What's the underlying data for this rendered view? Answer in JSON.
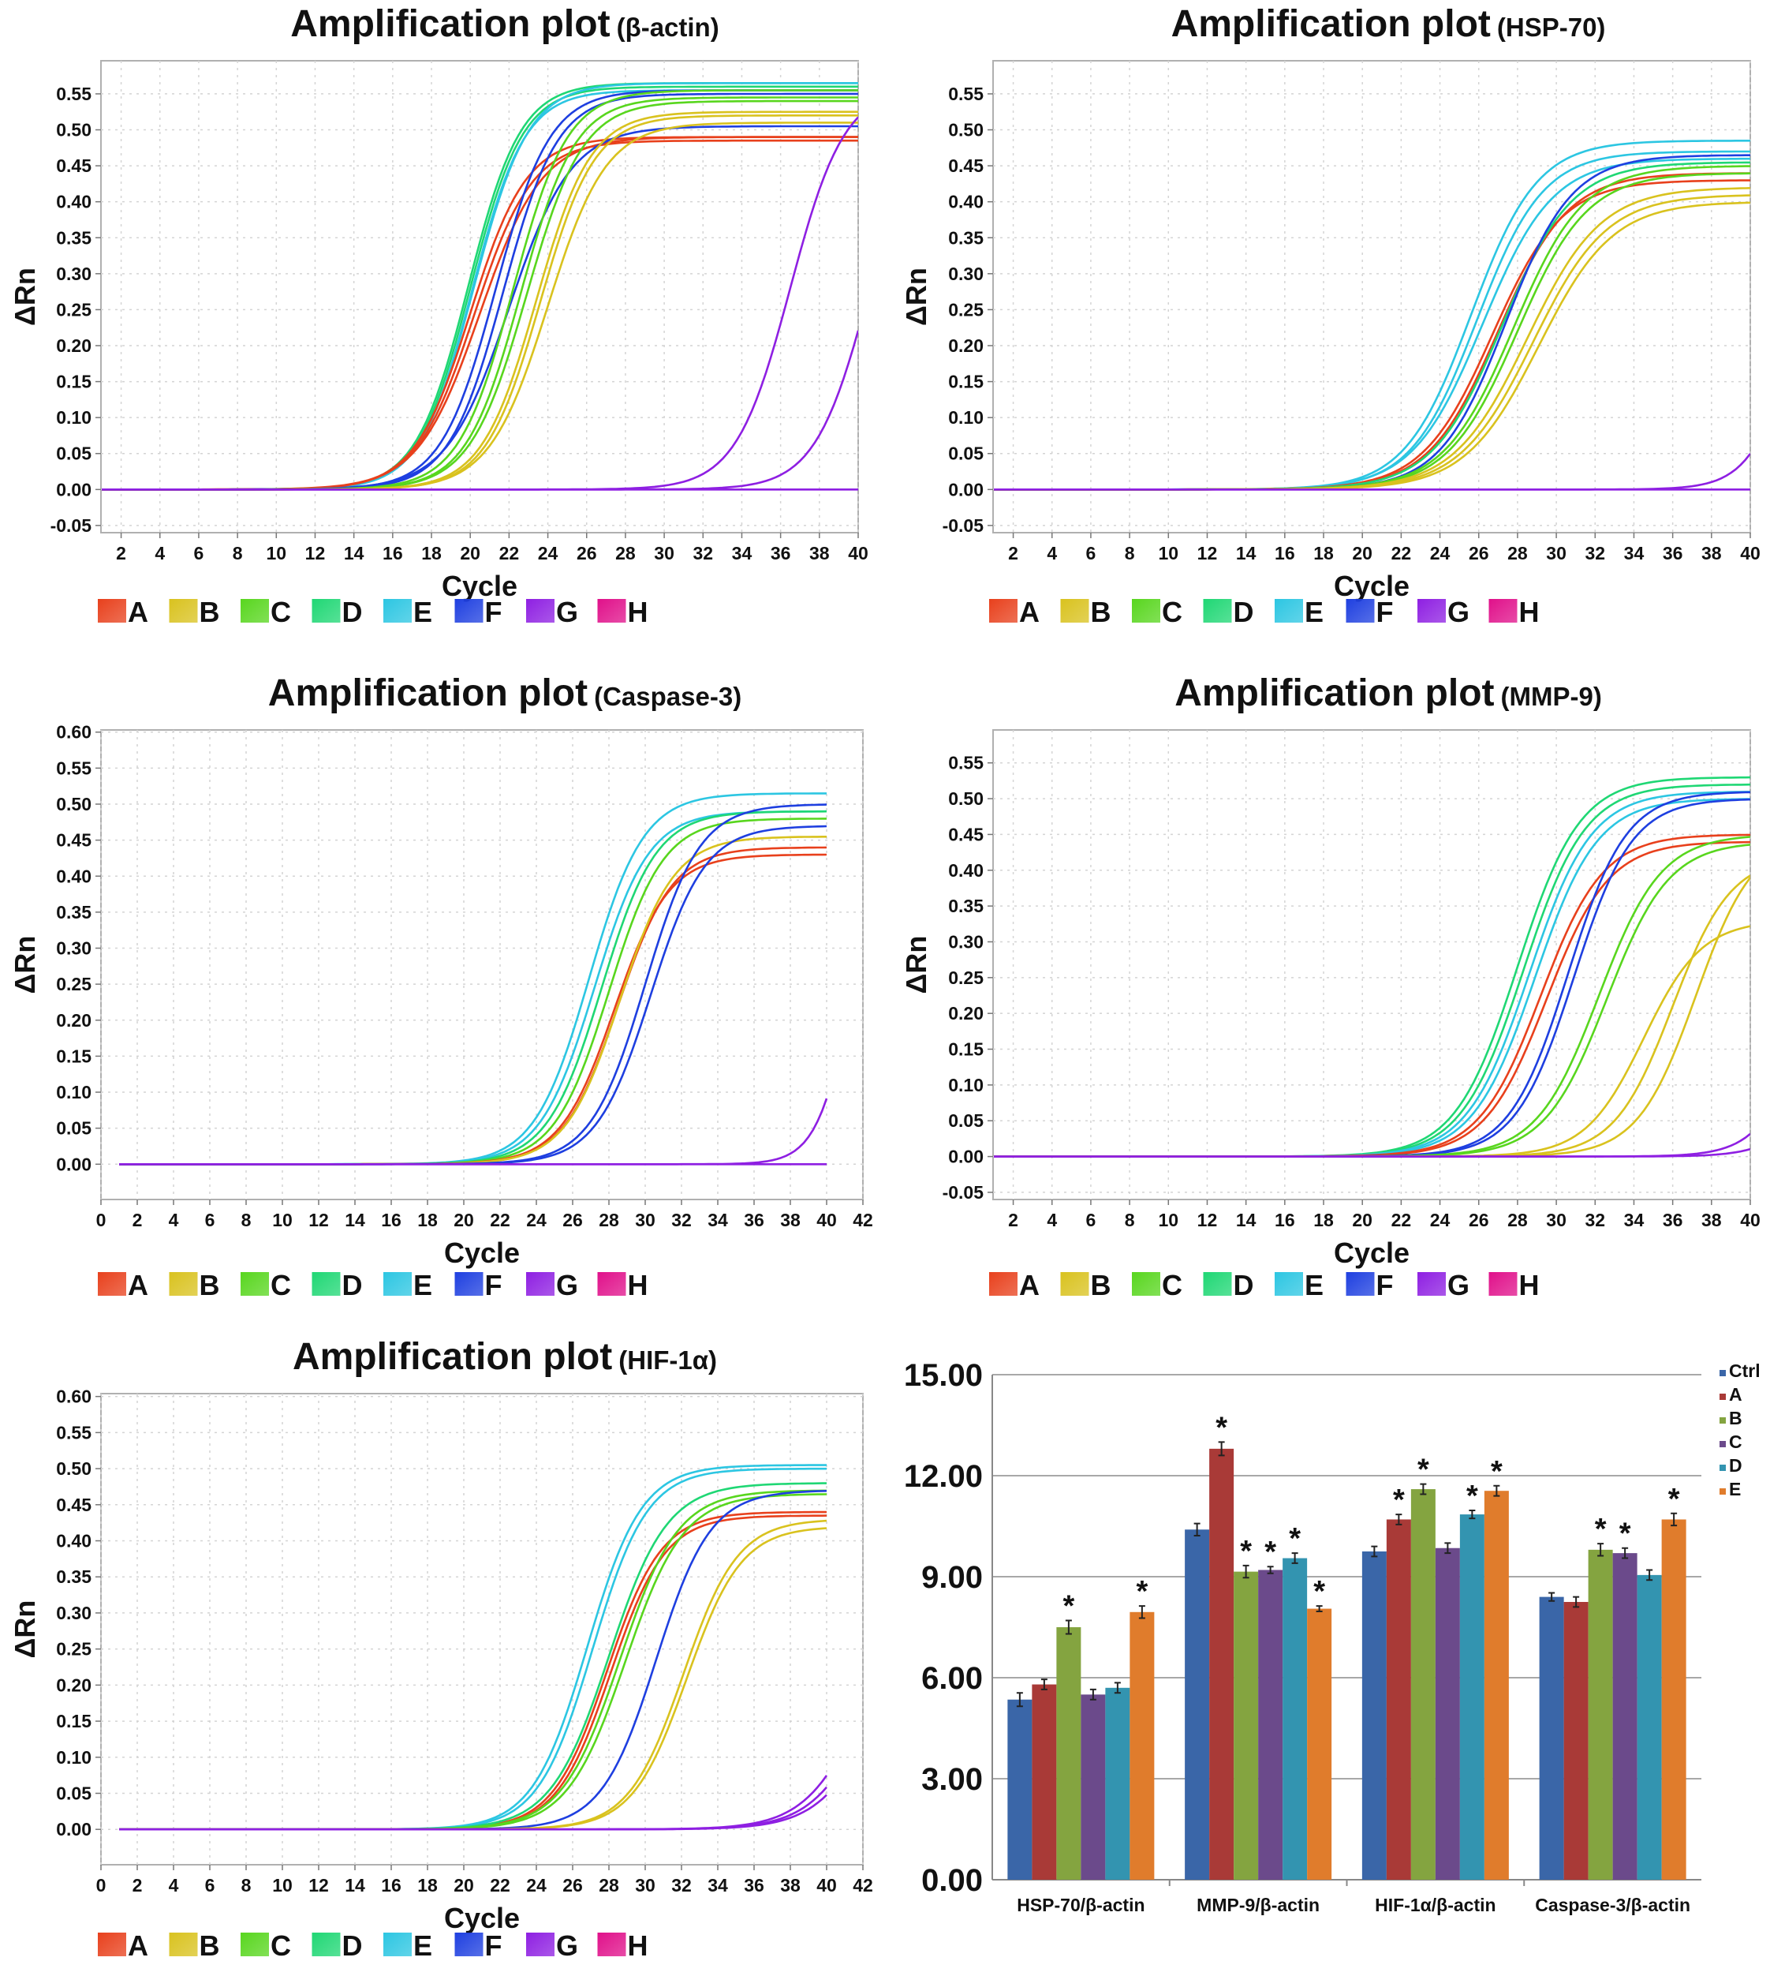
{
  "colors": {
    "A": "#e8401c",
    "B": "#d9c21e",
    "C": "#58d61e",
    "D": "#1fd774",
    "E": "#2cc6e2",
    "F": "#1e3fe0",
    "G": "#8e1fe2",
    "H": "#e0108a"
  },
  "legend_groups": [
    "A",
    "B",
    "C",
    "D",
    "E",
    "F",
    "G",
    "H"
  ],
  "chart_data": [
    {
      "type": "line",
      "title": "Amplification plot",
      "subtitle": "(β-actin)",
      "xlabel": "Cycle",
      "ylabel": "ΔRn",
      "xlim": [
        0.96,
        40
      ],
      "ylim": [
        -0.06,
        0.596
      ],
      "xticks": [
        2,
        4,
        6,
        8,
        10,
        12,
        14,
        16,
        18,
        20,
        22,
        24,
        26,
        28,
        30,
        32,
        34,
        36,
        38,
        40
      ],
      "yticks": [
        -0.05,
        0,
        0.05,
        0.1,
        0.15,
        0.2,
        0.25,
        0.3,
        0.35,
        0.4,
        0.45,
        0.5,
        0.55
      ],
      "grid": true,
      "legend_position": "bottom",
      "curves": [
        {
          "group": "D",
          "midpoint": 19.9,
          "plateau": 0.565,
          "slope": 1.35
        },
        {
          "group": "D",
          "midpoint": 20.0,
          "plateau": 0.56,
          "slope": 1.35
        },
        {
          "group": "E",
          "midpoint": 20.1,
          "plateau": 0.555,
          "slope": 1.35
        },
        {
          "group": "E",
          "midpoint": 20.2,
          "plateau": 0.565,
          "slope": 1.4
        },
        {
          "group": "A",
          "midpoint": 20.0,
          "plateau": 0.49,
          "slope": 1.45
        },
        {
          "group": "A",
          "midpoint": 20.2,
          "plateau": 0.485,
          "slope": 1.5
        },
        {
          "group": "A",
          "midpoint": 20.5,
          "plateau": 0.49,
          "slope": 1.6
        },
        {
          "group": "F",
          "midpoint": 21.3,
          "plateau": 0.555,
          "slope": 1.4
        },
        {
          "group": "F",
          "midpoint": 21.7,
          "plateau": 0.55,
          "slope": 1.4
        },
        {
          "group": "F",
          "midpoint": 22.0,
          "plateau": 0.505,
          "slope": 1.6
        },
        {
          "group": "C",
          "midpoint": 22.2,
          "plateau": 0.555,
          "slope": 1.4
        },
        {
          "group": "C",
          "midpoint": 22.6,
          "plateau": 0.545,
          "slope": 1.4
        },
        {
          "group": "C",
          "midpoint": 22.9,
          "plateau": 0.54,
          "slope": 1.45
        },
        {
          "group": "B",
          "midpoint": 23.4,
          "plateau": 0.525,
          "slope": 1.4
        },
        {
          "group": "B",
          "midpoint": 23.6,
          "plateau": 0.52,
          "slope": 1.4
        },
        {
          "group": "B",
          "midpoint": 24.0,
          "plateau": 0.51,
          "slope": 1.5
        },
        {
          "group": "G",
          "midpoint": 36.5,
          "plateau": 0.56,
          "slope": 1.4
        },
        {
          "group": "G",
          "midpoint": 40.6,
          "plateau": 0.56,
          "slope": 1.4
        },
        {
          "group": "G",
          "midpoint": 60,
          "plateau": 0.0,
          "slope": 1.4
        }
      ]
    },
    {
      "type": "line",
      "title": "Amplification plot",
      "subtitle": "(HSP-70)",
      "xlabel": "Cycle",
      "ylabel": "ΔRn",
      "xlim": [
        0.96,
        40
      ],
      "ylim": [
        -0.06,
        0.596
      ],
      "xticks": [
        2,
        4,
        6,
        8,
        10,
        12,
        14,
        16,
        18,
        20,
        22,
        24,
        26,
        28,
        30,
        32,
        34,
        36,
        38,
        40
      ],
      "yticks": [
        -0.05,
        0,
        0.05,
        0.1,
        0.15,
        0.2,
        0.25,
        0.3,
        0.35,
        0.4,
        0.45,
        0.5,
        0.55
      ],
      "grid": true,
      "legend_position": "bottom",
      "curves": [
        {
          "group": "E",
          "midpoint": 25.6,
          "plateau": 0.485,
          "slope": 1.7
        },
        {
          "group": "E",
          "midpoint": 25.9,
          "plateau": 0.47,
          "slope": 1.7
        },
        {
          "group": "E",
          "midpoint": 26.2,
          "plateau": 0.46,
          "slope": 1.8
        },
        {
          "group": "A",
          "midpoint": 26.7,
          "plateau": 0.43,
          "slope": 1.8
        },
        {
          "group": "A",
          "midpoint": 27.0,
          "plateau": 0.44,
          "slope": 1.8
        },
        {
          "group": "D",
          "midpoint": 27.2,
          "plateau": 0.455,
          "slope": 1.8
        },
        {
          "group": "F",
          "midpoint": 27.4,
          "plateau": 0.465,
          "slope": 1.7
        },
        {
          "group": "C",
          "midpoint": 27.8,
          "plateau": 0.45,
          "slope": 1.8
        },
        {
          "group": "C",
          "midpoint": 28.0,
          "plateau": 0.44,
          "slope": 1.8
        },
        {
          "group": "B",
          "midpoint": 28.5,
          "plateau": 0.42,
          "slope": 1.9
        },
        {
          "group": "B",
          "midpoint": 28.8,
          "plateau": 0.41,
          "slope": 1.9
        },
        {
          "group": "B",
          "midpoint": 29.1,
          "plateau": 0.4,
          "slope": 1.9
        },
        {
          "group": "G",
          "midpoint": 42.5,
          "plateau": 0.45,
          "slope": 1.2
        },
        {
          "group": "G",
          "midpoint": 60,
          "plateau": 0.0,
          "slope": 1.4
        }
      ]
    },
    {
      "type": "line",
      "title": "Amplification plot",
      "subtitle": "(Caspase-3)",
      "xlabel": "Cycle",
      "ylabel": "ΔRn",
      "xlim": [
        0,
        42
      ],
      "ylim": [
        -0.049,
        0.603
      ],
      "xticks": [
        0,
        2,
        4,
        6,
        8,
        10,
        12,
        14,
        16,
        18,
        20,
        22,
        24,
        26,
        28,
        30,
        32,
        34,
        36,
        38,
        40,
        42
      ],
      "yticks": [
        0,
        0.05,
        0.1,
        0.15,
        0.2,
        0.25,
        0.3,
        0.35,
        0.4,
        0.45,
        0.5,
        0.55,
        0.6
      ],
      "grid": true,
      "legend_position": "bottom",
      "curves": [
        {
          "group": "E",
          "midpoint": 26.9,
          "plateau": 0.515,
          "slope": 1.5
        },
        {
          "group": "E",
          "midpoint": 27.2,
          "plateau": 0.49,
          "slope": 1.5
        },
        {
          "group": "D",
          "midpoint": 27.6,
          "plateau": 0.49,
          "slope": 1.5
        },
        {
          "group": "C",
          "midpoint": 28.0,
          "plateau": 0.48,
          "slope": 1.5
        },
        {
          "group": "A",
          "midpoint": 28.3,
          "plateau": 0.43,
          "slope": 1.5
        },
        {
          "group": "A",
          "midpoint": 28.5,
          "plateau": 0.44,
          "slope": 1.5
        },
        {
          "group": "B",
          "midpoint": 28.6,
          "plateau": 0.455,
          "slope": 1.5
        },
        {
          "group": "F",
          "midpoint": 30.0,
          "plateau": 0.5,
          "slope": 1.5
        },
        {
          "group": "F",
          "midpoint": 30.3,
          "plateau": 0.47,
          "slope": 1.5
        },
        {
          "group": "G",
          "midpoint": 41.5,
          "plateau": 0.5,
          "slope": 1.0
        },
        {
          "group": "G",
          "midpoint": 60,
          "plateau": 0.0,
          "slope": 1.4
        }
      ]
    },
    {
      "type": "line",
      "title": "Amplification plot",
      "subtitle": "(MMP-9)",
      "xlabel": "Cycle",
      "ylabel": "ΔRn",
      "xlim": [
        0.96,
        40
      ],
      "ylim": [
        -0.06,
        0.596
      ],
      "xticks": [
        2,
        4,
        6,
        8,
        10,
        12,
        14,
        16,
        18,
        20,
        22,
        24,
        26,
        28,
        30,
        32,
        34,
        36,
        38,
        40
      ],
      "yticks": [
        -0.05,
        0,
        0.05,
        0.1,
        0.15,
        0.2,
        0.25,
        0.3,
        0.35,
        0.4,
        0.45,
        0.5,
        0.55
      ],
      "grid": true,
      "legend_position": "bottom",
      "curves": [
        {
          "group": "D",
          "midpoint": 28.0,
          "plateau": 0.53,
          "slope": 1.6
        },
        {
          "group": "D",
          "midpoint": 28.3,
          "plateau": 0.52,
          "slope": 1.6
        },
        {
          "group": "E",
          "midpoint": 28.6,
          "plateau": 0.51,
          "slope": 1.6
        },
        {
          "group": "E",
          "midpoint": 28.9,
          "plateau": 0.5,
          "slope": 1.6
        },
        {
          "group": "A",
          "midpoint": 29.2,
          "plateau": 0.45,
          "slope": 1.6
        },
        {
          "group": "A",
          "midpoint": 29.5,
          "plateau": 0.44,
          "slope": 1.6
        },
        {
          "group": "F",
          "midpoint": 30.6,
          "plateau": 0.51,
          "slope": 1.5
        },
        {
          "group": "F",
          "midpoint": 30.9,
          "plateau": 0.5,
          "slope": 1.5
        },
        {
          "group": "C",
          "midpoint": 32.2,
          "plateau": 0.45,
          "slope": 1.6
        },
        {
          "group": "C",
          "midpoint": 32.6,
          "plateau": 0.44,
          "slope": 1.6
        },
        {
          "group": "B",
          "midpoint": 34.5,
          "plateau": 0.33,
          "slope": 1.5
        },
        {
          "group": "B",
          "midpoint": 36.0,
          "plateau": 0.42,
          "slope": 1.5
        },
        {
          "group": "B",
          "midpoint": 37.2,
          "plateau": 0.45,
          "slope": 1.5
        },
        {
          "group": "G",
          "midpoint": 43.5,
          "plateau": 0.5,
          "slope": 1.3
        },
        {
          "group": "G",
          "midpoint": 45,
          "plateau": 0.5,
          "slope": 1.3
        }
      ]
    },
    {
      "type": "line",
      "title": "Amplification plot",
      "subtitle": "(HIF-1α)",
      "xlabel": "Cycle",
      "ylabel": "ΔRn",
      "xlim": [
        0,
        42
      ],
      "ylim": [
        -0.049,
        0.604
      ],
      "xticks": [
        0,
        2,
        4,
        6,
        8,
        10,
        12,
        14,
        16,
        18,
        20,
        22,
        24,
        26,
        28,
        30,
        32,
        34,
        36,
        38,
        40,
        42
      ],
      "yticks": [
        0,
        0.05,
        0.1,
        0.15,
        0.2,
        0.25,
        0.3,
        0.35,
        0.4,
        0.45,
        0.5,
        0.55,
        0.6
      ],
      "grid": true,
      "legend_position": "bottom",
      "curves": [
        {
          "group": "E",
          "midpoint": 26.8,
          "plateau": 0.505,
          "slope": 1.5
        },
        {
          "group": "E",
          "midpoint": 27.1,
          "plateau": 0.5,
          "slope": 1.5
        },
        {
          "group": "A",
          "midpoint": 27.9,
          "plateau": 0.44,
          "slope": 1.5
        },
        {
          "group": "A",
          "midpoint": 28.1,
          "plateau": 0.435,
          "slope": 1.5
        },
        {
          "group": "D",
          "midpoint": 28.0,
          "plateau": 0.48,
          "slope": 1.6
        },
        {
          "group": "C",
          "midpoint": 28.6,
          "plateau": 0.47,
          "slope": 1.6
        },
        {
          "group": "C",
          "midpoint": 28.9,
          "plateau": 0.465,
          "slope": 1.6
        },
        {
          "group": "F",
          "midpoint": 30.6,
          "plateau": 0.47,
          "slope": 1.5
        },
        {
          "group": "B",
          "midpoint": 32.1,
          "plateau": 0.43,
          "slope": 1.5
        },
        {
          "group": "B",
          "midpoint": 32.3,
          "plateau": 0.42,
          "slope": 1.5
        },
        {
          "group": "G",
          "midpoint": 42.5,
          "plateau": 0.4,
          "slope": 1.7
        },
        {
          "group": "G",
          "midpoint": 43,
          "plateau": 0.4,
          "slope": 1.7
        },
        {
          "group": "G",
          "midpoint": 43.3,
          "plateau": 0.38,
          "slope": 1.7
        }
      ]
    },
    {
      "type": "bar",
      "categories": [
        "HSP-70/β-actin",
        "MMP-9/β-actin",
        "HIF-1α/β-actin",
        "Caspase-3/β-actin"
      ],
      "ylim": [
        0,
        15
      ],
      "yticks": [
        "0.00",
        "3.00",
        "6.00",
        "9.00",
        "12.00",
        "15.00"
      ],
      "grid": true,
      "legend_position": "top-right",
      "series": [
        {
          "name": "Ctrl",
          "color": "#3a66a8",
          "values": [
            5.35,
            10.4,
            9.75,
            8.4
          ],
          "errors": [
            0.2,
            0.18,
            0.15,
            0.12
          ],
          "significant": [
            false,
            false,
            false,
            false
          ]
        },
        {
          "name": "A",
          "color": "#a93a37",
          "values": [
            5.8,
            12.8,
            10.7,
            8.25
          ],
          "errors": [
            0.15,
            0.2,
            0.15,
            0.15
          ],
          "significant": [
            false,
            true,
            true,
            false
          ]
        },
        {
          "name": "B",
          "color": "#84a440",
          "values": [
            7.5,
            9.15,
            11.6,
            9.8
          ],
          "errors": [
            0.2,
            0.18,
            0.15,
            0.18
          ],
          "significant": [
            true,
            true,
            true,
            true
          ]
        },
        {
          "name": "C",
          "color": "#6b4a8b",
          "values": [
            5.5,
            9.2,
            9.85,
            9.7
          ],
          "errors": [
            0.15,
            0.1,
            0.15,
            0.15
          ],
          "significant": [
            false,
            true,
            false,
            true
          ]
        },
        {
          "name": "D",
          "color": "#3394b0",
          "values": [
            5.7,
            9.55,
            10.85,
            9.05
          ],
          "errors": [
            0.15,
            0.15,
            0.12,
            0.15
          ],
          "significant": [
            false,
            true,
            true,
            false
          ]
        },
        {
          "name": "E",
          "color": "#e07c2c",
          "values": [
            7.95,
            8.05,
            11.55,
            10.7
          ],
          "errors": [
            0.18,
            0.08,
            0.15,
            0.18
          ],
          "significant": [
            true,
            true,
            true,
            true
          ]
        }
      ],
      "significance_marker": "*"
    }
  ]
}
